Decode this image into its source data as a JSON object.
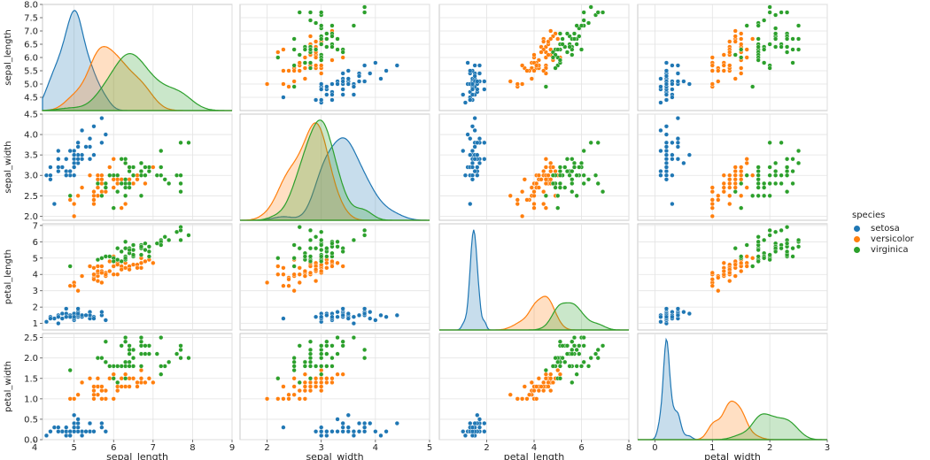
{
  "chart_data": {
    "type": "scatter",
    "kind": "pairplot",
    "grid": true,
    "variables": [
      "sepal_length",
      "sepal_width",
      "petal_length",
      "petal_width"
    ],
    "axis_labels": {
      "x": [
        "sepal_length",
        "sepal_width",
        "petal_length",
        "petal_width"
      ],
      "y": [
        "sepal_length",
        "sepal_width",
        "petal_length",
        "petal_width"
      ]
    },
    "ranges": {
      "sepal_length": {
        "lim": [
          4.2,
          9.0
        ],
        "ylim": [
          4.0,
          8.0
        ],
        "xticks": [
          4,
          5,
          6,
          7,
          8,
          9
        ],
        "yticks": [
          "4.5",
          "5.0",
          "5.5",
          "6.0",
          "6.5",
          "7.0",
          "7.5",
          "8.0"
        ]
      },
      "sepal_width": {
        "lim": [
          1.5,
          5.0
        ],
        "ylim": [
          1.9,
          4.5
        ],
        "xticks": [
          2,
          3,
          4,
          5
        ],
        "yticks": [
          "2.0",
          "2.5",
          "3.0",
          "3.5",
          "4.0",
          "4.5"
        ]
      },
      "petal_length": {
        "lim": [
          0,
          8
        ],
        "ylim": [
          0.6,
          7.1
        ],
        "xticks": [
          2,
          4,
          6,
          8
        ],
        "yticks": [
          "1",
          "2",
          "3",
          "4",
          "5",
          "6",
          "7"
        ]
      },
      "petal_width": {
        "lim": [
          -0.3,
          3.0
        ],
        "ylim": [
          0.0,
          2.6
        ],
        "xticks": [
          0,
          1,
          2,
          3
        ],
        "yticks": [
          "0.0",
          "0.5",
          "1.0",
          "1.5",
          "2.0",
          "2.5"
        ]
      }
    },
    "legend": {
      "title": "species",
      "position": "right",
      "entries": [
        "setosa",
        "versicolor",
        "virginica"
      ]
    },
    "colors": {
      "setosa": "#1f77b4",
      "versicolor": "#ff7f0e",
      "virginica": "#2ca02c"
    },
    "series": [
      {
        "name": "setosa",
        "points": [
          [
            5.1,
            3.5,
            1.4,
            0.2
          ],
          [
            4.9,
            3.0,
            1.4,
            0.2
          ],
          [
            4.7,
            3.2,
            1.3,
            0.2
          ],
          [
            4.6,
            3.1,
            1.5,
            0.2
          ],
          [
            5.0,
            3.6,
            1.4,
            0.2
          ],
          [
            5.4,
            3.9,
            1.7,
            0.4
          ],
          [
            4.6,
            3.4,
            1.4,
            0.3
          ],
          [
            5.0,
            3.4,
            1.5,
            0.2
          ],
          [
            4.4,
            2.9,
            1.4,
            0.2
          ],
          [
            4.9,
            3.1,
            1.5,
            0.1
          ],
          [
            5.4,
            3.7,
            1.5,
            0.2
          ],
          [
            4.8,
            3.4,
            1.6,
            0.2
          ],
          [
            4.8,
            3.0,
            1.4,
            0.1
          ],
          [
            4.3,
            3.0,
            1.1,
            0.1
          ],
          [
            5.8,
            4.0,
            1.2,
            0.2
          ],
          [
            5.7,
            4.4,
            1.5,
            0.4
          ],
          [
            5.4,
            3.9,
            1.3,
            0.4
          ],
          [
            5.1,
            3.5,
            1.4,
            0.3
          ],
          [
            5.7,
            3.8,
            1.7,
            0.3
          ],
          [
            5.1,
            3.8,
            1.5,
            0.3
          ],
          [
            5.4,
            3.4,
            1.7,
            0.2
          ],
          [
            5.1,
            3.7,
            1.5,
            0.4
          ],
          [
            4.6,
            3.6,
            1.0,
            0.2
          ],
          [
            5.1,
            3.3,
            1.7,
            0.5
          ],
          [
            4.8,
            3.4,
            1.9,
            0.2
          ],
          [
            5.0,
            3.0,
            1.6,
            0.2
          ],
          [
            5.0,
            3.4,
            1.6,
            0.4
          ],
          [
            5.2,
            3.5,
            1.5,
            0.2
          ],
          [
            5.2,
            3.4,
            1.4,
            0.2
          ],
          [
            4.7,
            3.2,
            1.6,
            0.2
          ],
          [
            4.8,
            3.1,
            1.6,
            0.2
          ],
          [
            5.4,
            3.4,
            1.5,
            0.4
          ],
          [
            5.2,
            4.1,
            1.5,
            0.1
          ],
          [
            5.5,
            4.2,
            1.4,
            0.2
          ],
          [
            4.9,
            3.1,
            1.5,
            0.2
          ],
          [
            5.0,
            3.2,
            1.2,
            0.2
          ],
          [
            5.5,
            3.5,
            1.3,
            0.2
          ],
          [
            4.9,
            3.6,
            1.4,
            0.1
          ],
          [
            4.4,
            3.0,
            1.3,
            0.2
          ],
          [
            5.1,
            3.4,
            1.5,
            0.2
          ],
          [
            5.0,
            3.5,
            1.3,
            0.3
          ],
          [
            4.5,
            2.3,
            1.3,
            0.3
          ],
          [
            4.4,
            3.2,
            1.3,
            0.2
          ],
          [
            5.0,
            3.5,
            1.6,
            0.6
          ],
          [
            5.1,
            3.8,
            1.9,
            0.4
          ],
          [
            4.8,
            3.0,
            1.4,
            0.3
          ],
          [
            5.1,
            3.8,
            1.6,
            0.2
          ],
          [
            4.6,
            3.2,
            1.4,
            0.2
          ],
          [
            5.3,
            3.7,
            1.5,
            0.2
          ],
          [
            5.0,
            3.3,
            1.4,
            0.2
          ]
        ]
      },
      {
        "name": "versicolor",
        "points": [
          [
            7.0,
            3.2,
            4.7,
            1.4
          ],
          [
            6.4,
            3.2,
            4.5,
            1.5
          ],
          [
            6.9,
            3.1,
            4.9,
            1.5
          ],
          [
            5.5,
            2.3,
            4.0,
            1.3
          ],
          [
            6.5,
            2.8,
            4.6,
            1.5
          ],
          [
            5.7,
            2.8,
            4.5,
            1.3
          ],
          [
            6.3,
            3.3,
            4.7,
            1.6
          ],
          [
            4.9,
            2.4,
            3.3,
            1.0
          ],
          [
            6.6,
            2.9,
            4.6,
            1.3
          ],
          [
            5.2,
            2.7,
            3.9,
            1.4
          ],
          [
            5.0,
            2.0,
            3.5,
            1.0
          ],
          [
            5.9,
            3.0,
            4.2,
            1.5
          ],
          [
            6.0,
            2.2,
            4.0,
            1.0
          ],
          [
            6.1,
            2.9,
            4.7,
            1.4
          ],
          [
            5.6,
            2.9,
            3.6,
            1.3
          ],
          [
            6.7,
            3.1,
            4.4,
            1.4
          ],
          [
            5.6,
            3.0,
            4.5,
            1.5
          ],
          [
            5.8,
            2.7,
            4.1,
            1.0
          ],
          [
            6.2,
            2.2,
            4.5,
            1.5
          ],
          [
            5.6,
            2.5,
            3.9,
            1.1
          ],
          [
            5.9,
            3.2,
            4.8,
            1.8
          ],
          [
            6.1,
            2.8,
            4.0,
            1.3
          ],
          [
            6.3,
            2.5,
            4.9,
            1.5
          ],
          [
            6.1,
            2.8,
            4.7,
            1.2
          ],
          [
            6.4,
            2.9,
            4.3,
            1.3
          ],
          [
            6.6,
            3.0,
            4.4,
            1.4
          ],
          [
            6.8,
            2.8,
            4.8,
            1.4
          ],
          [
            6.7,
            3.0,
            5.0,
            1.7
          ],
          [
            6.0,
            2.9,
            4.5,
            1.5
          ],
          [
            5.7,
            2.6,
            3.5,
            1.0
          ],
          [
            5.5,
            2.4,
            3.8,
            1.1
          ],
          [
            5.5,
            2.4,
            3.7,
            1.0
          ],
          [
            5.8,
            2.7,
            3.9,
            1.2
          ],
          [
            6.0,
            2.7,
            5.1,
            1.6
          ],
          [
            5.4,
            3.0,
            4.5,
            1.5
          ],
          [
            6.0,
            3.4,
            4.5,
            1.6
          ],
          [
            6.7,
            3.1,
            4.7,
            1.5
          ],
          [
            6.3,
            2.3,
            4.4,
            1.3
          ],
          [
            5.6,
            3.0,
            4.1,
            1.3
          ],
          [
            5.5,
            2.5,
            4.0,
            1.3
          ],
          [
            5.5,
            2.6,
            4.4,
            1.2
          ],
          [
            6.1,
            3.0,
            4.6,
            1.4
          ],
          [
            5.8,
            2.6,
            4.0,
            1.2
          ],
          [
            5.0,
            2.3,
            3.3,
            1.0
          ],
          [
            5.6,
            2.7,
            4.2,
            1.3
          ],
          [
            5.7,
            3.0,
            4.2,
            1.2
          ],
          [
            5.7,
            2.9,
            4.2,
            1.3
          ],
          [
            6.2,
            2.9,
            4.3,
            1.3
          ],
          [
            5.1,
            2.5,
            3.0,
            1.1
          ],
          [
            5.7,
            2.8,
            4.1,
            1.3
          ]
        ]
      },
      {
        "name": "virginica",
        "points": [
          [
            6.3,
            3.3,
            6.0,
            2.5
          ],
          [
            5.8,
            2.7,
            5.1,
            1.9
          ],
          [
            7.1,
            3.0,
            5.9,
            2.1
          ],
          [
            6.3,
            2.9,
            5.6,
            1.8
          ],
          [
            6.5,
            3.0,
            5.8,
            2.2
          ],
          [
            7.6,
            3.0,
            6.6,
            2.1
          ],
          [
            4.9,
            2.5,
            4.5,
            1.7
          ],
          [
            7.3,
            2.9,
            6.3,
            1.8
          ],
          [
            6.7,
            2.5,
            5.8,
            1.8
          ],
          [
            7.2,
            3.6,
            6.1,
            2.5
          ],
          [
            6.5,
            3.2,
            5.1,
            2.0
          ],
          [
            6.4,
            2.7,
            5.3,
            1.9
          ],
          [
            6.8,
            3.0,
            5.5,
            2.1
          ],
          [
            5.7,
            2.5,
            5.0,
            2.0
          ],
          [
            5.8,
            2.8,
            5.1,
            2.4
          ],
          [
            6.4,
            3.2,
            5.3,
            2.3
          ],
          [
            6.5,
            3.0,
            5.5,
            1.8
          ],
          [
            7.7,
            3.8,
            6.7,
            2.2
          ],
          [
            7.7,
            2.6,
            6.9,
            2.3
          ],
          [
            6.0,
            2.2,
            5.0,
            1.5
          ],
          [
            6.9,
            3.2,
            5.7,
            2.3
          ],
          [
            5.6,
            2.8,
            4.9,
            2.0
          ],
          [
            7.7,
            2.8,
            6.7,
            2.0
          ],
          [
            6.3,
            2.7,
            4.9,
            1.8
          ],
          [
            6.7,
            3.3,
            5.7,
            2.1
          ],
          [
            7.2,
            3.2,
            6.0,
            1.8
          ],
          [
            6.2,
            2.8,
            4.8,
            1.8
          ],
          [
            6.1,
            3.0,
            4.9,
            1.8
          ],
          [
            6.4,
            2.8,
            5.6,
            2.1
          ],
          [
            7.2,
            3.0,
            5.8,
            1.6
          ],
          [
            7.4,
            2.8,
            6.1,
            1.9
          ],
          [
            7.9,
            3.8,
            6.4,
            2.0
          ],
          [
            6.4,
            2.8,
            5.6,
            2.2
          ],
          [
            6.3,
            2.8,
            5.1,
            1.5
          ],
          [
            6.1,
            2.6,
            5.6,
            1.4
          ],
          [
            7.7,
            3.0,
            6.1,
            2.3
          ],
          [
            6.3,
            3.4,
            5.6,
            2.4
          ],
          [
            6.4,
            3.1,
            5.5,
            1.8
          ],
          [
            6.0,
            3.0,
            4.8,
            1.8
          ],
          [
            6.9,
            3.1,
            5.4,
            2.1
          ],
          [
            6.7,
            3.1,
            5.6,
            2.4
          ],
          [
            6.9,
            3.1,
            5.1,
            2.3
          ],
          [
            5.8,
            2.7,
            5.1,
            1.9
          ],
          [
            6.8,
            3.2,
            5.9,
            2.3
          ],
          [
            6.7,
            3.3,
            5.7,
            2.5
          ],
          [
            6.7,
            3.0,
            5.2,
            2.3
          ],
          [
            6.3,
            2.5,
            5.0,
            1.9
          ],
          [
            6.5,
            3.0,
            5.2,
            2.0
          ],
          [
            6.2,
            3.4,
            5.4,
            2.3
          ],
          [
            5.9,
            3.0,
            5.1,
            1.8
          ]
        ]
      }
    ]
  }
}
